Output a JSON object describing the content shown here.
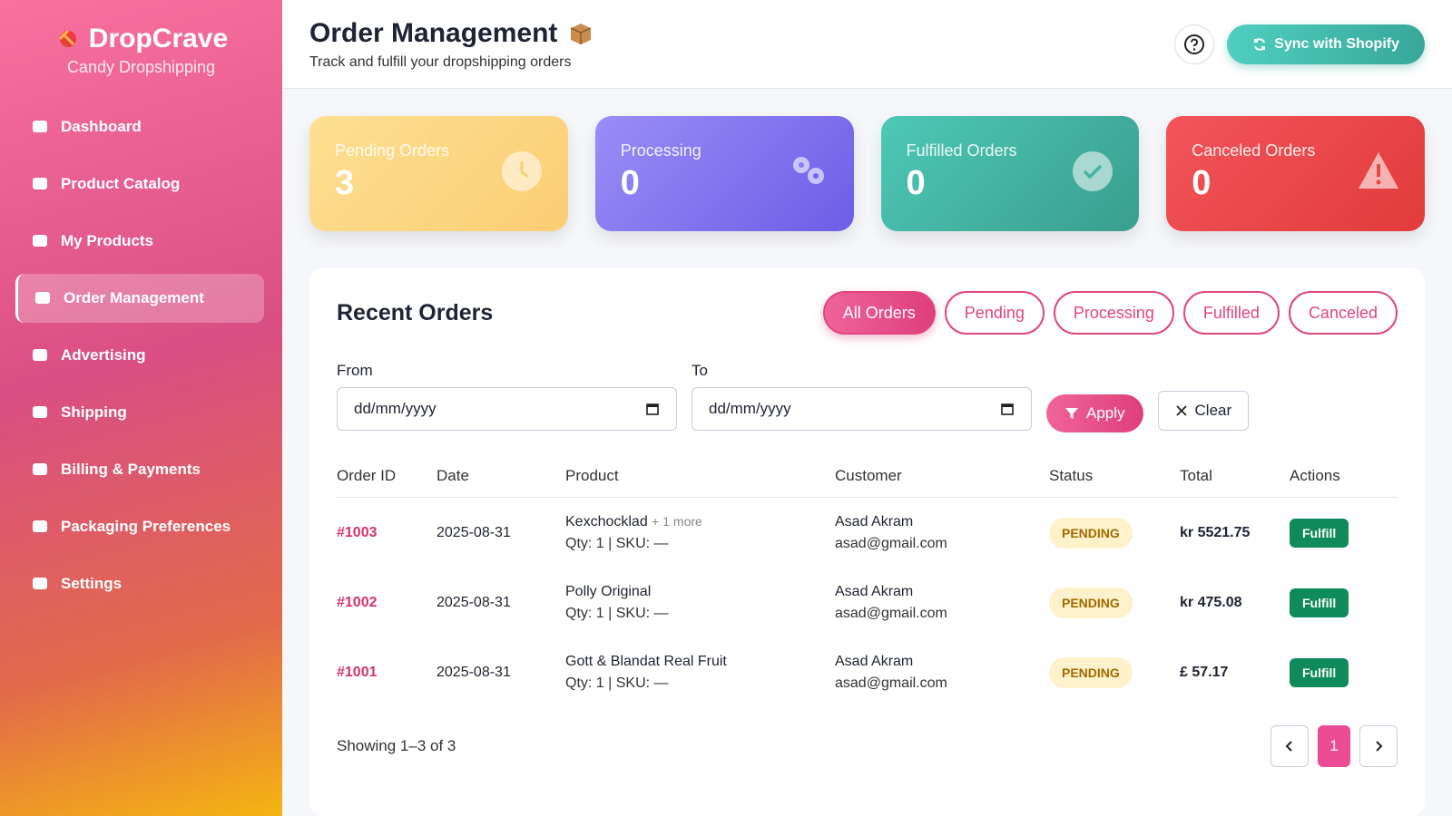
{
  "sidebar": {
    "brand": "DropCrave",
    "tagline": "Candy Dropshipping",
    "nav": [
      "Dashboard",
      "Product Catalog",
      "My Products",
      "Order Management",
      "Advertising",
      "Shipping",
      "Billing & Payments",
      "Packaging Preferences",
      "Settings"
    ],
    "active": 3
  },
  "header": {
    "title": "Order Management",
    "subtitle": "Track and fulfill your dropshipping orders",
    "sync": "Sync with Shopify"
  },
  "stats": [
    {
      "label": "Pending Orders",
      "value": 3
    },
    {
      "label": "Processing",
      "value": 0
    },
    {
      "label": "Fulfilled Orders",
      "value": 0
    },
    {
      "label": "Canceled Orders",
      "value": 0
    }
  ],
  "orders": {
    "title": "Recent Orders",
    "filters": [
      "All Orders",
      "Pending",
      "Processing",
      "Fulfilled",
      "Canceled"
    ],
    "active_filter": 0,
    "from": "From",
    "to": "To",
    "placeholder": "dd/mm/yyyy",
    "apply": "Apply",
    "clear": "Clear",
    "columns": [
      "Order ID",
      "Date",
      "Product",
      "Customer",
      "Status",
      "Total",
      "Actions"
    ],
    "rows": [
      {
        "id": "#1003",
        "date": "2025-08-31",
        "product": "Kexchocklad",
        "more": "+ 1 more",
        "meta": "Qty: 1 | SKU: —",
        "customer": "Asad Akram",
        "email": "asad@gmail.com",
        "status": "PENDING",
        "total": "kr 5521.75",
        "action": "Fulfill"
      },
      {
        "id": "#1002",
        "date": "2025-08-31",
        "product": "Polly Original",
        "meta": "Qty: 1 | SKU: —",
        "customer": "Asad Akram",
        "email": "asad@gmail.com",
        "status": "PENDING",
        "total": "kr 475.08",
        "action": "Fulfill"
      },
      {
        "id": "#1001",
        "date": "2025-08-31",
        "product": "Gott & Blandat Real Fruit",
        "meta": "Qty: 1 | SKU: —",
        "customer": "Asad Akram",
        "email": "asad@gmail.com",
        "status": "PENDING",
        "total": "£ 57.17",
        "action": "Fulfill"
      }
    ],
    "showing": "Showing 1–3 of 3",
    "page": 1
  }
}
